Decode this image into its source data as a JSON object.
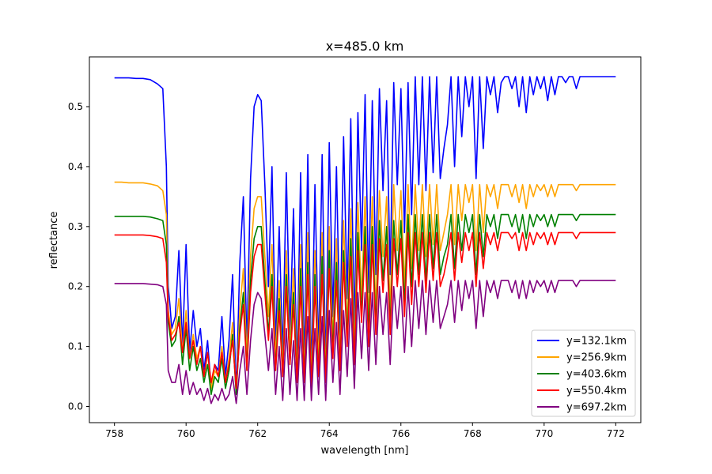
{
  "chart_data": {
    "type": "line",
    "title": "x=485.0 km",
    "xlabel": "wavelength [nm]",
    "ylabel": "reflectance",
    "xlim": [
      757.3,
      772.7
    ],
    "ylim": [
      -0.027,
      0.583
    ],
    "xticks": [
      758,
      760,
      762,
      764,
      766,
      768,
      770,
      772
    ],
    "xtick_labels": [
      "758",
      "760",
      "762",
      "764",
      "766",
      "768",
      "770",
      "772"
    ],
    "yticks": [
      0.0,
      0.1,
      0.2,
      0.3,
      0.4,
      0.5
    ],
    "ytick_labels": [
      "0.0",
      "0.1",
      "0.2",
      "0.3",
      "0.4",
      "0.5"
    ],
    "grid": false,
    "legend_position": "lower-right",
    "x": [
      758.0,
      758.2,
      758.4,
      758.6,
      758.8,
      759.0,
      759.2,
      759.35,
      759.45,
      759.5,
      759.55,
      759.6,
      759.7,
      759.8,
      759.9,
      760.0,
      760.1,
      760.2,
      760.3,
      760.4,
      760.5,
      760.6,
      760.7,
      760.8,
      760.9,
      761.0,
      761.1,
      761.2,
      761.3,
      761.4,
      761.5,
      761.6,
      761.7,
      761.8,
      761.9,
      762.0,
      762.1,
      762.2,
      762.3,
      762.4,
      762.5,
      762.6,
      762.7,
      762.8,
      762.9,
      763.0,
      763.1,
      763.2,
      763.3,
      763.4,
      763.5,
      763.6,
      763.7,
      763.8,
      763.9,
      764.0,
      764.1,
      764.2,
      764.3,
      764.4,
      764.5,
      764.6,
      764.7,
      764.8,
      764.9,
      765.0,
      765.1,
      765.2,
      765.3,
      765.4,
      765.5,
      765.6,
      765.7,
      765.8,
      765.9,
      766.0,
      766.1,
      766.2,
      766.3,
      766.4,
      766.5,
      766.6,
      766.7,
      766.8,
      766.9,
      767.0,
      767.1,
      767.2,
      767.3,
      767.4,
      767.5,
      767.6,
      767.7,
      767.8,
      767.9,
      768.0,
      768.1,
      768.2,
      768.3,
      768.4,
      768.5,
      768.6,
      768.7,
      768.8,
      768.9,
      769.0,
      769.1,
      769.2,
      769.3,
      769.4,
      769.5,
      769.6,
      769.7,
      769.8,
      769.9,
      770.0,
      770.1,
      770.2,
      770.3,
      770.4,
      770.5,
      770.6,
      770.7,
      770.8,
      770.9,
      771.0,
      771.2,
      771.4,
      771.6,
      771.8,
      772.0
    ],
    "series": [
      {
        "name": "y=132.1km",
        "color": "#0000ff",
        "values": [
          0.548,
          0.548,
          0.548,
          0.547,
          0.547,
          0.545,
          0.538,
          0.53,
          0.4,
          0.2,
          0.17,
          0.13,
          0.15,
          0.26,
          0.1,
          0.27,
          0.09,
          0.16,
          0.1,
          0.13,
          0.06,
          0.11,
          0.03,
          0.07,
          0.06,
          0.15,
          0.05,
          0.11,
          0.22,
          0.02,
          0.24,
          0.35,
          0.1,
          0.38,
          0.5,
          0.52,
          0.51,
          0.37,
          0.2,
          0.4,
          0.1,
          0.3,
          0.08,
          0.39,
          0.12,
          0.33,
          0.06,
          0.39,
          0.07,
          0.42,
          0.05,
          0.37,
          0.09,
          0.42,
          0.06,
          0.44,
          0.15,
          0.4,
          0.11,
          0.45,
          0.18,
          0.48,
          0.12,
          0.49,
          0.26,
          0.52,
          0.19,
          0.51,
          0.22,
          0.53,
          0.36,
          0.51,
          0.22,
          0.54,
          0.37,
          0.53,
          0.29,
          0.54,
          0.32,
          0.55,
          0.37,
          0.55,
          0.36,
          0.55,
          0.39,
          0.55,
          0.38,
          0.43,
          0.47,
          0.55,
          0.4,
          0.55,
          0.45,
          0.55,
          0.5,
          0.55,
          0.38,
          0.55,
          0.43,
          0.55,
          0.52,
          0.55,
          0.49,
          0.54,
          0.55,
          0.55,
          0.53,
          0.55,
          0.5,
          0.55,
          0.49,
          0.55,
          0.52,
          0.55,
          0.53,
          0.55,
          0.51,
          0.55,
          0.52,
          0.55,
          0.55,
          0.54,
          0.55,
          0.55,
          0.53,
          0.55,
          0.55,
          0.55,
          0.55,
          0.55,
          0.55
        ]
      },
      {
        "name": "y=256.9km",
        "color": "#ffa500",
        "values": [
          0.374,
          0.374,
          0.373,
          0.373,
          0.373,
          0.371,
          0.368,
          0.36,
          0.32,
          0.16,
          0.14,
          0.12,
          0.13,
          0.18,
          0.09,
          0.16,
          0.08,
          0.12,
          0.08,
          0.1,
          0.05,
          0.09,
          0.03,
          0.06,
          0.05,
          0.1,
          0.04,
          0.08,
          0.14,
          0.02,
          0.16,
          0.23,
          0.08,
          0.25,
          0.33,
          0.35,
          0.35,
          0.25,
          0.15,
          0.27,
          0.08,
          0.21,
          0.06,
          0.26,
          0.09,
          0.23,
          0.05,
          0.27,
          0.05,
          0.29,
          0.04,
          0.26,
          0.07,
          0.29,
          0.05,
          0.3,
          0.11,
          0.28,
          0.08,
          0.31,
          0.13,
          0.33,
          0.09,
          0.34,
          0.18,
          0.35,
          0.14,
          0.35,
          0.16,
          0.36,
          0.25,
          0.35,
          0.16,
          0.37,
          0.26,
          0.36,
          0.2,
          0.37,
          0.23,
          0.37,
          0.26,
          0.37,
          0.25,
          0.37,
          0.27,
          0.37,
          0.26,
          0.29,
          0.32,
          0.37,
          0.27,
          0.37,
          0.31,
          0.37,
          0.34,
          0.37,
          0.26,
          0.37,
          0.29,
          0.37,
          0.35,
          0.37,
          0.33,
          0.37,
          0.37,
          0.37,
          0.35,
          0.37,
          0.34,
          0.37,
          0.33,
          0.37,
          0.35,
          0.37,
          0.36,
          0.37,
          0.35,
          0.37,
          0.35,
          0.37,
          0.37,
          0.37,
          0.37,
          0.37,
          0.36,
          0.37,
          0.37,
          0.37,
          0.37,
          0.37,
          0.37
        ]
      },
      {
        "name": "y=403.6km",
        "color": "#008000",
        "values": [
          0.317,
          0.317,
          0.317,
          0.317,
          0.317,
          0.316,
          0.313,
          0.31,
          0.27,
          0.14,
          0.12,
          0.1,
          0.11,
          0.15,
          0.07,
          0.13,
          0.06,
          0.1,
          0.06,
          0.08,
          0.04,
          0.07,
          0.02,
          0.05,
          0.04,
          0.08,
          0.03,
          0.06,
          0.12,
          0.02,
          0.13,
          0.19,
          0.06,
          0.21,
          0.28,
          0.3,
          0.3,
          0.21,
          0.12,
          0.22,
          0.06,
          0.18,
          0.05,
          0.22,
          0.07,
          0.19,
          0.04,
          0.23,
          0.04,
          0.24,
          0.03,
          0.22,
          0.05,
          0.25,
          0.04,
          0.26,
          0.09,
          0.24,
          0.06,
          0.26,
          0.11,
          0.28,
          0.07,
          0.29,
          0.15,
          0.3,
          0.12,
          0.3,
          0.13,
          0.31,
          0.21,
          0.3,
          0.13,
          0.31,
          0.22,
          0.31,
          0.17,
          0.32,
          0.2,
          0.32,
          0.22,
          0.32,
          0.21,
          0.32,
          0.23,
          0.32,
          0.22,
          0.25,
          0.27,
          0.32,
          0.23,
          0.32,
          0.26,
          0.32,
          0.29,
          0.32,
          0.22,
          0.32,
          0.25,
          0.32,
          0.3,
          0.32,
          0.28,
          0.32,
          0.32,
          0.32,
          0.3,
          0.32,
          0.29,
          0.32,
          0.28,
          0.32,
          0.3,
          0.32,
          0.31,
          0.32,
          0.3,
          0.32,
          0.3,
          0.32,
          0.32,
          0.32,
          0.32,
          0.32,
          0.31,
          0.32,
          0.32,
          0.32,
          0.32,
          0.32,
          0.32
        ]
      },
      {
        "name": "y=550.4km",
        "color": "#ff0000",
        "values": [
          0.286,
          0.286,
          0.286,
          0.286,
          0.286,
          0.285,
          0.283,
          0.28,
          0.24,
          0.15,
          0.13,
          0.11,
          0.12,
          0.14,
          0.09,
          0.14,
          0.08,
          0.11,
          0.07,
          0.1,
          0.05,
          0.09,
          0.04,
          0.07,
          0.05,
          0.09,
          0.04,
          0.07,
          0.11,
          0.03,
          0.12,
          0.17,
          0.06,
          0.19,
          0.25,
          0.27,
          0.27,
          0.19,
          0.11,
          0.2,
          0.06,
          0.16,
          0.05,
          0.2,
          0.07,
          0.17,
          0.04,
          0.2,
          0.04,
          0.22,
          0.03,
          0.2,
          0.05,
          0.22,
          0.04,
          0.23,
          0.08,
          0.21,
          0.06,
          0.24,
          0.1,
          0.25,
          0.07,
          0.26,
          0.14,
          0.27,
          0.1,
          0.27,
          0.12,
          0.28,
          0.19,
          0.27,
          0.12,
          0.28,
          0.2,
          0.28,
          0.15,
          0.29,
          0.17,
          0.29,
          0.2,
          0.29,
          0.19,
          0.29,
          0.21,
          0.29,
          0.2,
          0.22,
          0.25,
          0.29,
          0.21,
          0.29,
          0.24,
          0.29,
          0.26,
          0.29,
          0.2,
          0.29,
          0.23,
          0.29,
          0.27,
          0.29,
          0.26,
          0.29,
          0.29,
          0.29,
          0.28,
          0.29,
          0.26,
          0.29,
          0.26,
          0.29,
          0.27,
          0.29,
          0.28,
          0.29,
          0.27,
          0.29,
          0.27,
          0.29,
          0.29,
          0.29,
          0.29,
          0.29,
          0.28,
          0.29,
          0.29,
          0.29,
          0.29,
          0.29,
          0.29
        ]
      },
      {
        "name": "y=697.2km",
        "color": "#800080",
        "values": [
          0.205,
          0.205,
          0.205,
          0.205,
          0.205,
          0.204,
          0.203,
          0.2,
          0.17,
          0.06,
          0.05,
          0.04,
          0.04,
          0.07,
          0.02,
          0.06,
          0.02,
          0.04,
          0.02,
          0.03,
          0.01,
          0.03,
          0.005,
          0.02,
          0.01,
          0.03,
          0.01,
          0.02,
          0.05,
          0.005,
          0.06,
          0.1,
          0.02,
          0.11,
          0.17,
          0.19,
          0.18,
          0.12,
          0.06,
          0.13,
          0.02,
          0.1,
          0.01,
          0.13,
          0.02,
          0.11,
          0.01,
          0.13,
          0.01,
          0.15,
          0.01,
          0.13,
          0.02,
          0.15,
          0.01,
          0.16,
          0.04,
          0.14,
          0.02,
          0.16,
          0.05,
          0.18,
          0.03,
          0.19,
          0.08,
          0.19,
          0.06,
          0.19,
          0.07,
          0.2,
          0.12,
          0.19,
          0.07,
          0.2,
          0.13,
          0.2,
          0.09,
          0.2,
          0.1,
          0.21,
          0.13,
          0.21,
          0.12,
          0.21,
          0.14,
          0.21,
          0.13,
          0.15,
          0.17,
          0.21,
          0.14,
          0.21,
          0.16,
          0.21,
          0.18,
          0.21,
          0.13,
          0.21,
          0.15,
          0.21,
          0.19,
          0.21,
          0.18,
          0.21,
          0.21,
          0.21,
          0.19,
          0.21,
          0.18,
          0.21,
          0.18,
          0.21,
          0.19,
          0.21,
          0.2,
          0.21,
          0.19,
          0.21,
          0.19,
          0.21,
          0.21,
          0.21,
          0.21,
          0.21,
          0.2,
          0.21,
          0.21,
          0.21,
          0.21,
          0.21,
          0.21
        ]
      }
    ]
  }
}
